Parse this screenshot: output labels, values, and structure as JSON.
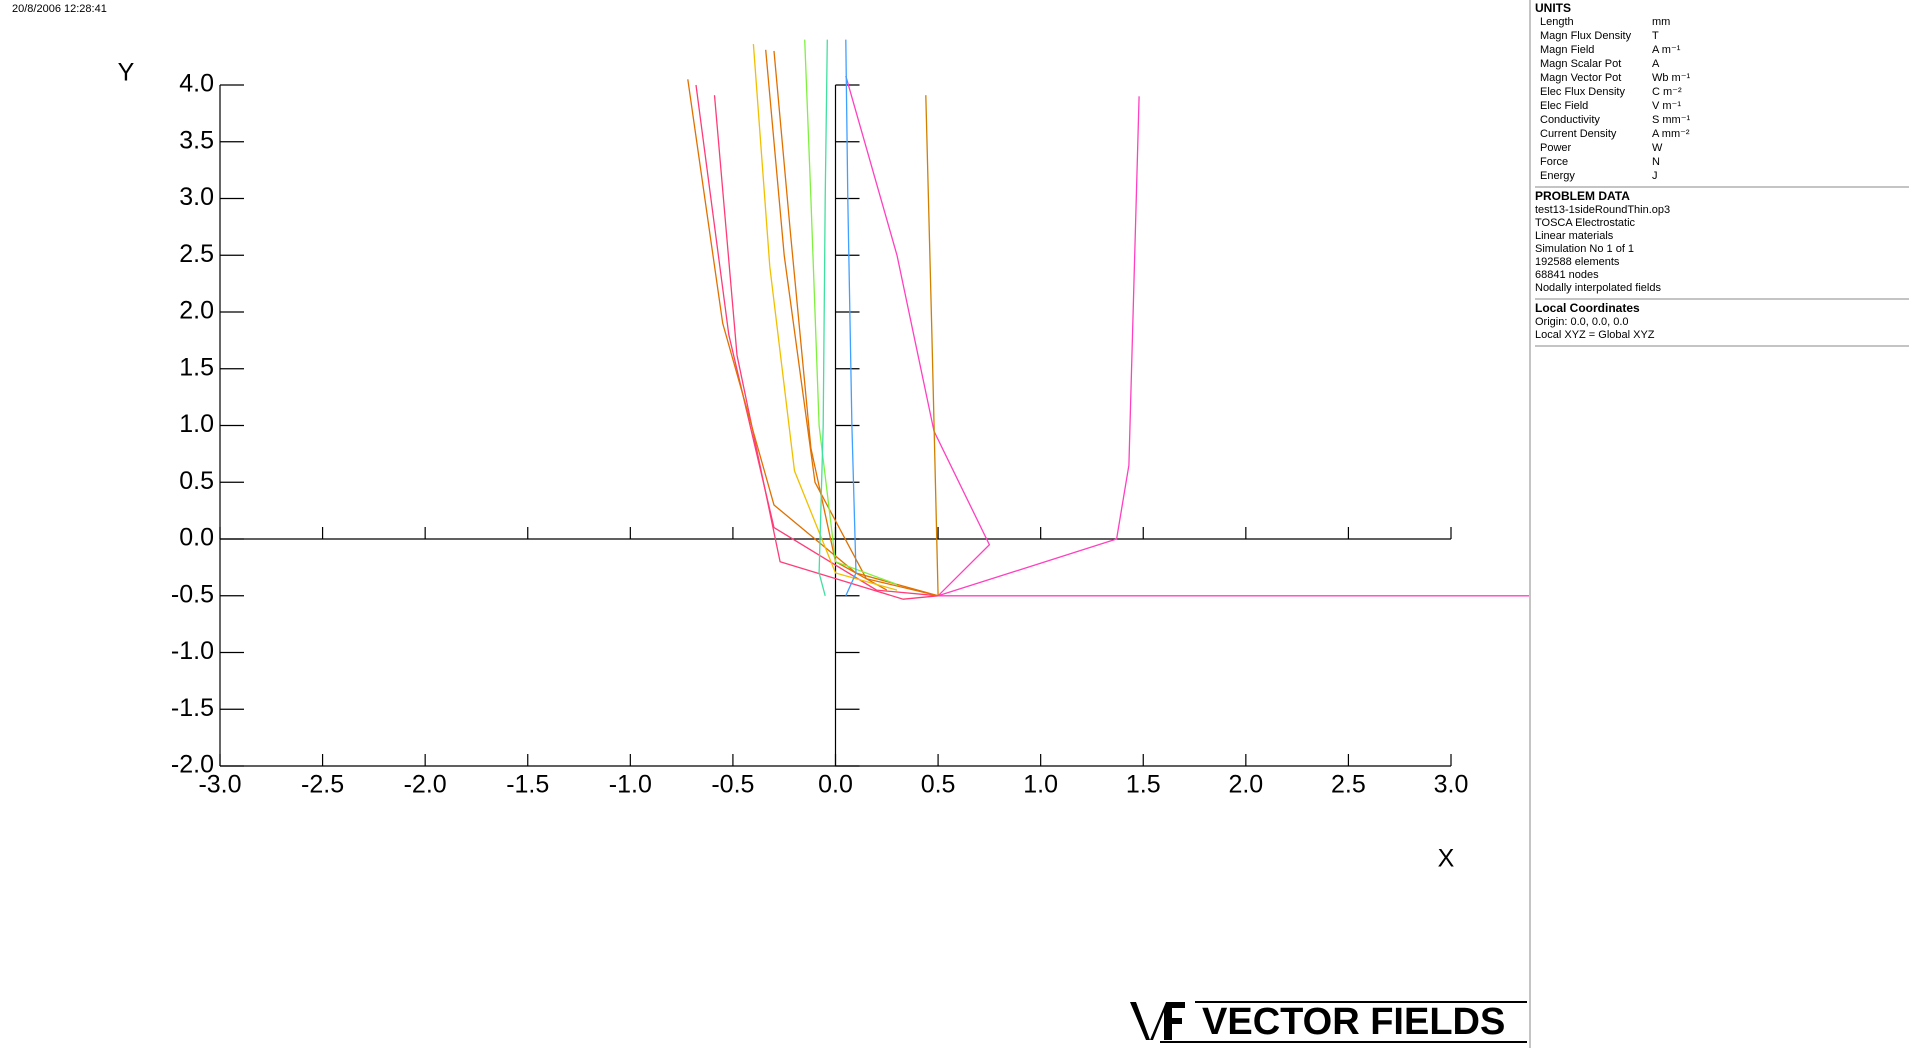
{
  "timestamp": "20/8/2006 12:28:41",
  "chart_data": {
    "type": "line",
    "x_label": "X",
    "y_label": "Y",
    "xlim": [
      -3,
      3
    ],
    "ylim": [
      -2,
      4
    ],
    "xticks": [
      {
        "value": -3,
        "label": "-3.0"
      },
      {
        "value": -2.5,
        "label": "-2.5"
      },
      {
        "value": -2,
        "label": "-2.0"
      },
      {
        "value": -1.5,
        "label": "-1.5"
      },
      {
        "value": -1,
        "label": "-1.0"
      },
      {
        "value": -0.5,
        "label": "-0.5"
      },
      {
        "value": 0,
        "label": "0.0"
      },
      {
        "value": 0.5,
        "label": "0.5"
      },
      {
        "value": 1,
        "label": "1.0"
      },
      {
        "value": 1.5,
        "label": "1.5"
      },
      {
        "value": 2,
        "label": "2.0"
      },
      {
        "value": 2.5,
        "label": "2.5"
      },
      {
        "value": 3,
        "label": "3.0"
      }
    ],
    "yticks": [
      {
        "value": -2,
        "label": "-2.0"
      },
      {
        "value": -1.5,
        "label": "-1.5"
      },
      {
        "value": -1,
        "label": "-1.0"
      },
      {
        "value": -0.5,
        "label": "-0.5"
      },
      {
        "value": 0,
        "label": "0.0"
      },
      {
        "value": 0.5,
        "label": "0.5"
      },
      {
        "value": 1,
        "label": "1.0"
      },
      {
        "value": 1.5,
        "label": "1.5"
      },
      {
        "value": 2,
        "label": "2.0"
      },
      {
        "value": 2.5,
        "label": "2.5"
      },
      {
        "value": 3,
        "label": "3.0"
      },
      {
        "value": 3.5,
        "label": "3.5"
      },
      {
        "value": 4,
        "label": "4.0"
      }
    ],
    "series": [
      {
        "color": "#ff40c0",
        "x": [
          3.38,
          0.5,
          1.37,
          1.43,
          1.48
        ],
        "values": [
          -0.5,
          -0.5,
          0,
          0.65,
          3.9
        ]
      },
      {
        "color": "#ff40c0",
        "x": [
          0.5,
          0.75,
          0.48,
          0.3,
          0.05
        ],
        "values": [
          -0.5,
          -0.05,
          0.95,
          2.5,
          4.08
        ]
      },
      {
        "color": "#d08000",
        "x": [
          0.5,
          0.47,
          0.44
        ],
        "values": [
          -0.5,
          1.8,
          3.91
        ]
      },
      {
        "color": "#ff3c78",
        "x": [
          0.5,
          0.33,
          -0.27,
          -0.48,
          -0.59
        ],
        "values": [
          -0.5,
          -0.53,
          -0.2,
          1.62,
          3.91
        ]
      },
      {
        "color": "#ff3c78",
        "x": [
          0.5,
          0.2,
          -0.3,
          -0.52,
          -0.68
        ],
        "values": [
          -0.5,
          -0.45,
          0.1,
          1.8,
          4.0
        ]
      },
      {
        "color": "#e07000",
        "x": [
          0.5,
          0.1,
          -0.3,
          -0.55,
          -0.72
        ],
        "values": [
          -0.5,
          -0.3,
          0.3,
          1.9,
          4.05
        ]
      },
      {
        "color": "#e07000",
        "x": [
          0.5,
          0.15,
          -0.1,
          -0.25,
          -0.34
        ],
        "values": [
          -0.5,
          -0.35,
          0.5,
          2.5,
          4.31
        ]
      },
      {
        "color": "#e07000",
        "x": [
          0.25,
          0.0,
          -0.12,
          -0.22,
          -0.3
        ],
        "values": [
          -0.45,
          -0.2,
          0.8,
          2.7,
          4.3
        ]
      },
      {
        "color": "#f0c000",
        "x": [
          0.3,
          0.0,
          -0.2,
          -0.32,
          -0.4
        ],
        "values": [
          -0.45,
          -0.3,
          0.6,
          2.4,
          4.36
        ]
      },
      {
        "color": "#80f040",
        "x": [
          0.3,
          0.0,
          -0.08,
          -0.12,
          -0.15
        ],
        "values": [
          -0.4,
          -0.2,
          1.0,
          3.0,
          4.4
        ]
      },
      {
        "color": "#40e0a0",
        "x": [
          -0.05,
          -0.08,
          -0.06,
          -0.05,
          -0.04
        ],
        "values": [
          -0.5,
          -0.3,
          1.0,
          3.0,
          4.4
        ]
      },
      {
        "color": "#40a0ff",
        "x": [
          0.05,
          0.1,
          0.08,
          0.06,
          0.05
        ],
        "values": [
          -0.5,
          -0.3,
          1.0,
          3.0,
          4.4
        ]
      }
    ]
  },
  "panel": {
    "units_title": "UNITS",
    "units": [
      [
        "Length",
        "mm"
      ],
      [
        "Magn Flux Density",
        "T"
      ],
      [
        "Magn Field",
        "A m⁻¹"
      ],
      [
        "Magn Scalar Pot",
        "A"
      ],
      [
        "Magn Vector Pot",
        "Wb m⁻¹"
      ],
      [
        "Elec Flux Density",
        "C m⁻²"
      ],
      [
        "Elec Field",
        "V m⁻¹"
      ],
      [
        "Conductivity",
        "S mm⁻¹"
      ],
      [
        "Current Density",
        "A mm⁻²"
      ],
      [
        "Power",
        "W"
      ],
      [
        "Force",
        "N"
      ],
      [
        "Energy",
        "J"
      ]
    ],
    "problem_title": "PROBLEM DATA",
    "problem": [
      "test13-1sideRoundThin.op3",
      "TOSCA Electrostatic",
      "Linear materials",
      "Simulation No 1 of 1",
      "192588 elements",
      "68841 nodes",
      "Nodally interpolated fields"
    ],
    "coords_title": "Local Coordinates",
    "coords": [
      "Origin: 0.0, 0.0, 0.0",
      "Local XYZ = Global XYZ"
    ]
  },
  "logo": "VECTOR FIELDS"
}
